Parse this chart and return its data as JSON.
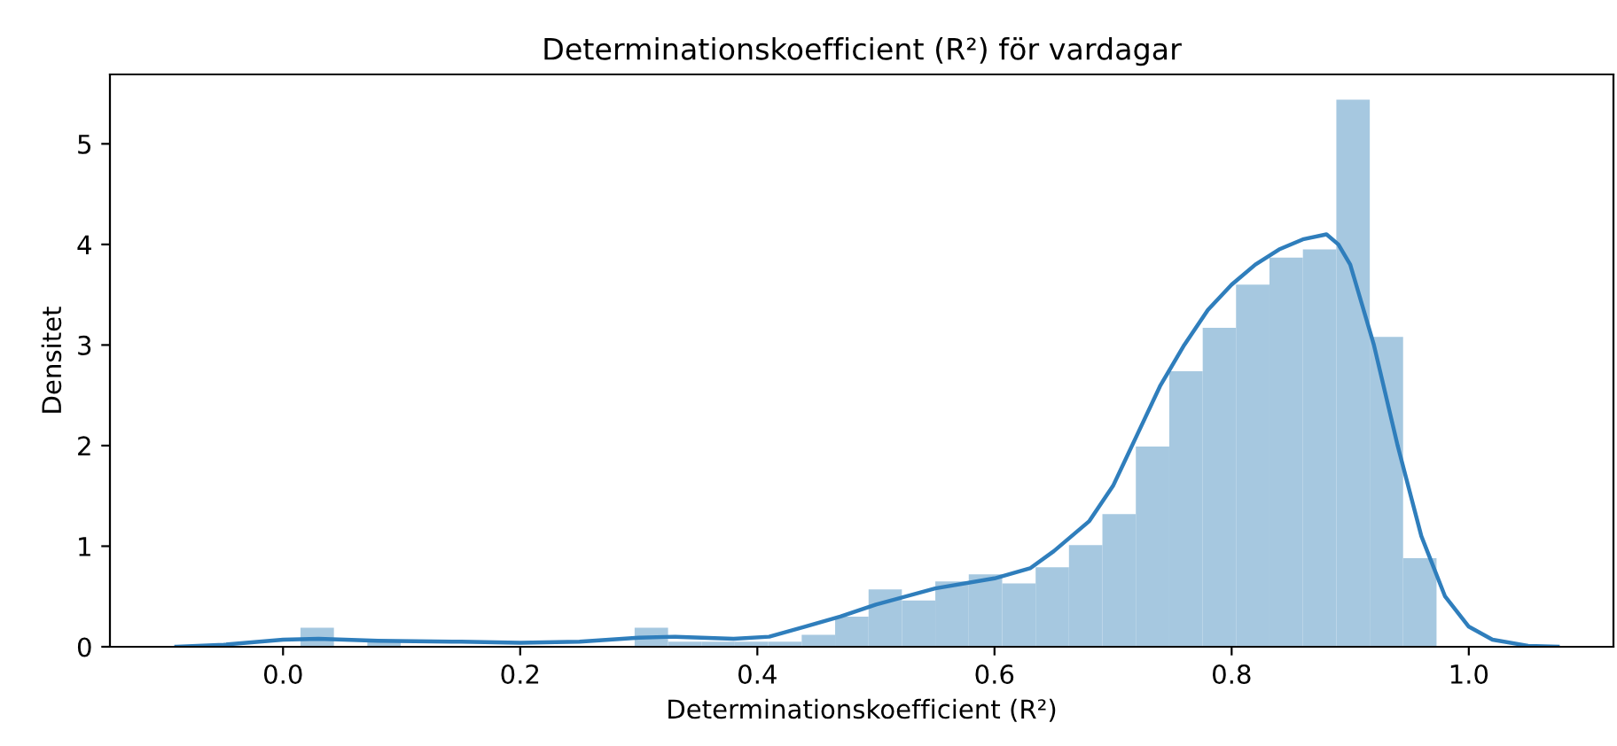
{
  "chart_data": {
    "type": "histogram",
    "title": "Determinationskoefficient (R²) för vardagar",
    "xlabel": "Determinationskoefficient (R²)",
    "ylabel": "Densitet",
    "bins": [
      0.0147,
      0.0429,
      0.0711,
      0.0992,
      0.1274,
      0.1556,
      0.1838,
      0.212,
      0.2401,
      0.2683,
      0.2965,
      0.3247,
      0.3529,
      0.381,
      0.4092,
      0.4374,
      0.4656,
      0.4938,
      0.5219,
      0.5501,
      0.5783,
      0.6065,
      0.6347,
      0.6628,
      0.691,
      0.7192,
      0.7474,
      0.7756,
      0.8037,
      0.8319,
      0.8601,
      0.8883,
      0.9165,
      0.9446,
      0.9728
    ],
    "values": [
      0.19,
      0,
      0.05,
      0,
      0,
      0,
      0,
      0,
      0,
      0,
      0.19,
      0.05,
      0.05,
      0.05,
      0.05,
      0.12,
      0.3,
      0.57,
      0.46,
      0.65,
      0.72,
      0.63,
      0.79,
      1.01,
      1.32,
      1.99,
      2.74,
      3.17,
      3.6,
      3.87,
      3.95,
      5.44,
      3.08,
      0.88
    ],
    "color": "#a6c8e0",
    "series": [
      {
        "type": "line",
        "color": "#2f7ebc",
        "x": [
          -0.09,
          -0.05,
          0.0,
          0.03,
          0.08,
          0.15,
          0.2,
          0.25,
          0.3,
          0.33,
          0.38,
          0.41,
          0.44,
          0.47,
          0.5,
          0.55,
          0.6,
          0.63,
          0.65,
          0.68,
          0.7,
          0.72,
          0.74,
          0.76,
          0.78,
          0.8,
          0.82,
          0.84,
          0.86,
          0.88,
          0.89,
          0.9,
          0.92,
          0.94,
          0.96,
          0.98,
          1.0,
          1.02,
          1.05,
          1.075
        ],
        "values": [
          0.0,
          0.02,
          0.07,
          0.08,
          0.06,
          0.05,
          0.04,
          0.05,
          0.09,
          0.1,
          0.08,
          0.1,
          0.2,
          0.3,
          0.42,
          0.58,
          0.68,
          0.78,
          0.95,
          1.25,
          1.6,
          2.1,
          2.6,
          3.0,
          3.35,
          3.6,
          3.8,
          3.95,
          4.05,
          4.1,
          4.0,
          3.8,
          3.0,
          2.0,
          1.1,
          0.5,
          0.2,
          0.07,
          0.01,
          0.0
        ]
      }
    ],
    "xlim": [
      -0.146,
      1.122
    ],
    "ylim": [
      0,
      5.69
    ],
    "xticks": [
      {
        "value": 0,
        "label": "0.0"
      },
      0.2,
      0.4,
      0.6,
      0.8,
      {
        "value": 1,
        "label": "1.0"
      }
    ],
    "yticks": [
      0,
      1,
      2,
      3,
      4,
      5
    ],
    "grid": false,
    "legend": false
  }
}
